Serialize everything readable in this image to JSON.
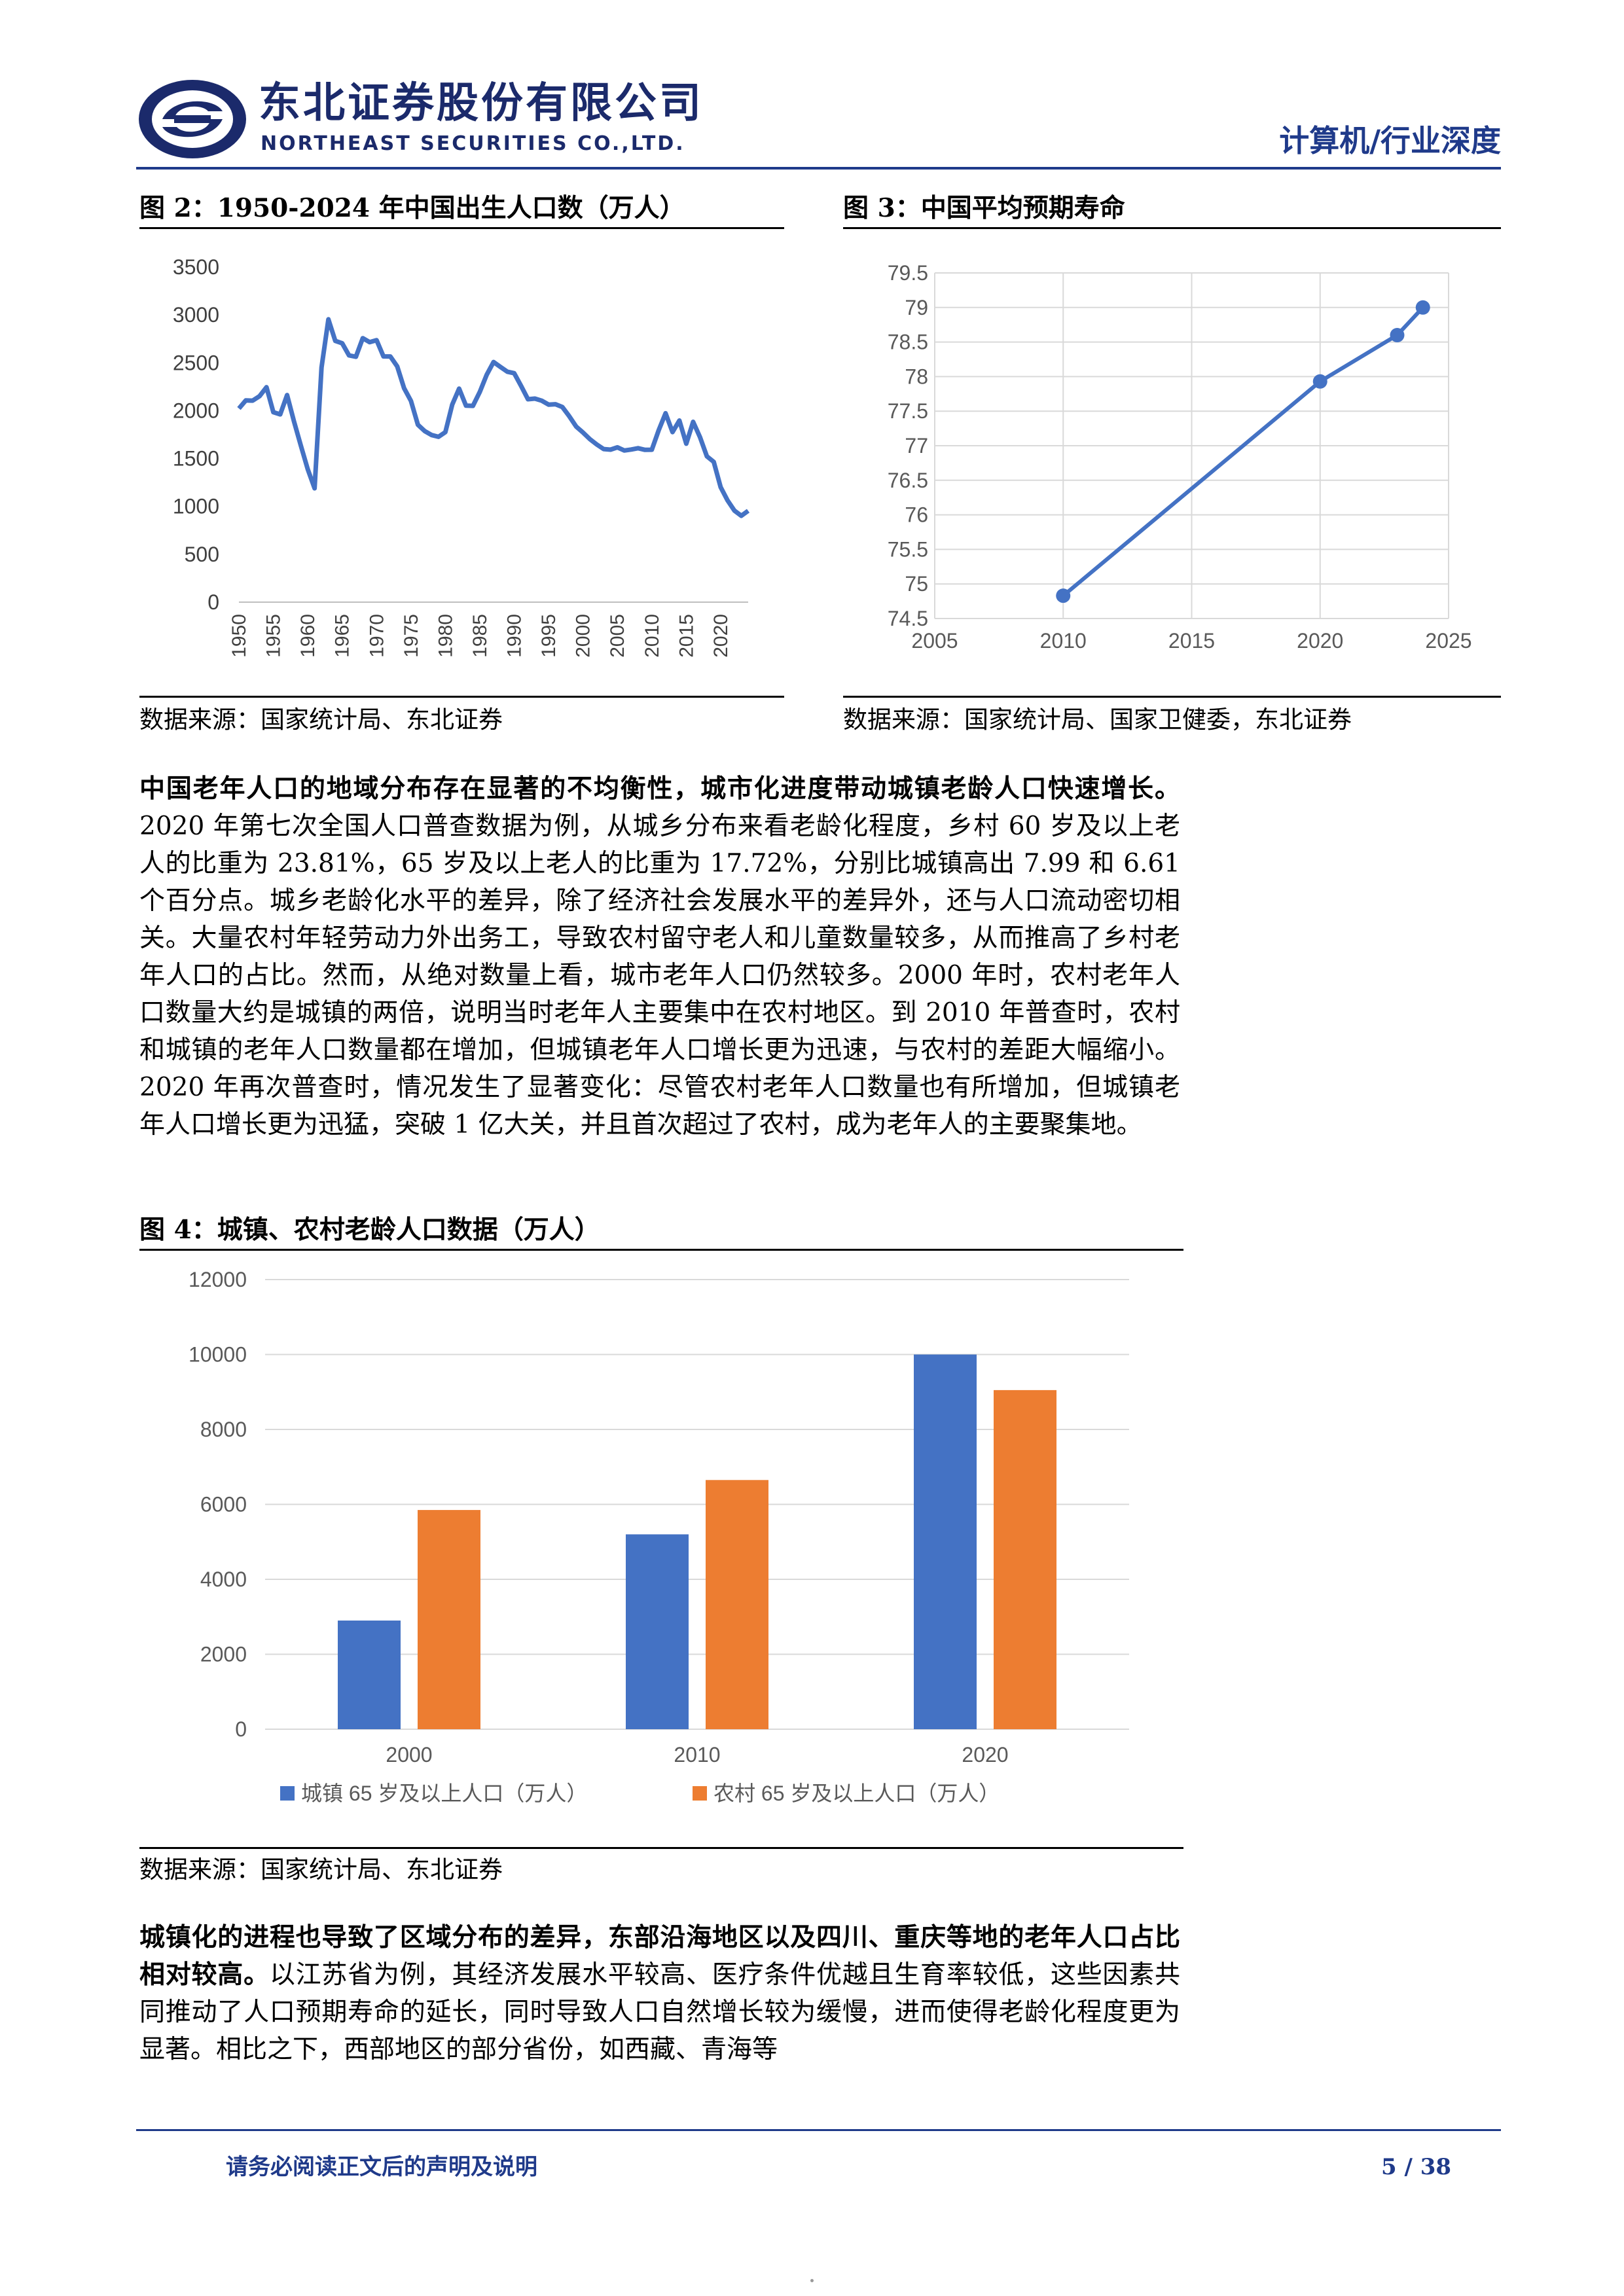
{
  "header": {
    "brand_cn": "东北证券股份有限公司",
    "brand_en": "NORTHEAST SECURITIES CO.,LTD.",
    "tag": "计算机/行业深度"
  },
  "figures": {
    "fig2": {
      "title": "图 2：1950-2024 年中国出生人口数（万人）",
      "source": "数据来源：国家统计局、东北证券"
    },
    "fig3": {
      "title": "图 3：中国平均预期寿命",
      "source": "数据来源：国家统计局、国家卫健委，东北证券"
    },
    "fig4": {
      "title": "图 4：城镇、农村老龄人口数据（万人）",
      "source": "数据来源：国家统计局、东北证券"
    }
  },
  "paragraph1": {
    "lead": "中国老年人口的地域分布存在显著的不均衡性，城市化进度带动城镇老龄人口快速增长。",
    "body": "2020 年第七次全国人口普查数据为例，从城乡分布来看老龄化程度，乡村 60 岁及以上老人的比重为 23.81%，65 岁及以上老人的比重为 17.72%，分别比城镇高出 7.99 和 6.61 个百分点。城乡老龄化水平的差异，除了经济社会发展水平的差异外，还与人口流动密切相关。大量农村年轻劳动力外出务工，导致农村留守老人和儿童数量较多，从而推高了乡村老年人口的占比。然而，从绝对数量上看，城市老年人口仍然较多。2000 年时，农村老年人口数量大约是城镇的两倍，说明当时老年人主要集中在农村地区。到 2010 年普查时，农村和城镇的老年人口数量都在增加，但城镇老年人口增长更为迅速，与农村的差距大幅缩小。2020 年再次普查时，情况发生了显著变化：尽管农村老年人口数量也有所增加，但城镇老年人口增长更为迅猛，突破 1 亿大关，并且首次超过了农村，成为老年人的主要聚集地。"
  },
  "paragraph2": {
    "lead": "城镇化的进程也导致了区域分布的差异，东部沿海地区以及四川、重庆等地的老年人口占比相对较高。",
    "body": "以江苏省为例，其经济发展水平较高、医疗条件优越且生育率较低，这些因素共同推动了人口预期寿命的延长，同时导致人口自然增长较为缓慢，进而使得老龄化程度更为显著。相比之下，西部地区的部分省份，如西藏、青海等"
  },
  "footer": {
    "note": "请务必阅读正文后的声明及说明",
    "page": "5 / 38"
  },
  "colors": {
    "brand": "#1f3a8a",
    "line": "#4472c4",
    "urban": "#4472c4",
    "rural": "#ed7d31"
  },
  "chart_data": [
    {
      "id": "fig2",
      "type": "line",
      "title": "",
      "ylim": [
        0,
        3500
      ],
      "xlim": [
        1950,
        2024
      ],
      "yticks": [
        0,
        500,
        1000,
        1500,
        2000,
        2500,
        3000,
        3500
      ],
      "xticks": [
        1950,
        1955,
        1960,
        1965,
        1970,
        1975,
        1980,
        1985,
        1990,
        1995,
        2000,
        2005,
        2010,
        2015,
        2020
      ],
      "grid": false,
      "x": [
        1950,
        1951,
        1952,
        1953,
        1954,
        1955,
        1956,
        1957,
        1958,
        1959,
        1960,
        1961,
        1962,
        1963,
        1964,
        1965,
        1966,
        1967,
        1968,
        1969,
        1970,
        1971,
        1972,
        1973,
        1974,
        1975,
        1976,
        1977,
        1978,
        1979,
        1980,
        1981,
        1982,
        1983,
        1984,
        1985,
        1986,
        1987,
        1988,
        1989,
        1990,
        1991,
        1992,
        1993,
        1994,
        1995,
        1996,
        1997,
        1998,
        1999,
        2000,
        2001,
        2002,
        2003,
        2004,
        2005,
        2006,
        2007,
        2008,
        2009,
        2010,
        2011,
        2012,
        2013,
        2014,
        2015,
        2016,
        2017,
        2018,
        2019,
        2020,
        2021,
        2022,
        2023,
        2024
      ],
      "values": [
        2023,
        2107,
        2105,
        2151,
        2245,
        1984,
        1961,
        2163,
        1889,
        1635,
        1389,
        1189,
        2451,
        2954,
        2729,
        2704,
        2577,
        2563,
        2757,
        2715,
        2736,
        2567,
        2566,
        2463,
        2235,
        2102,
        1853,
        1786,
        1745,
        1727,
        1776,
        2064,
        2230,
        2052,
        2050,
        2196,
        2374,
        2508,
        2457,
        2407,
        2391,
        2258,
        2119,
        2126,
        2104,
        2063,
        2067,
        2038,
        1942,
        1834,
        1771,
        1702,
        1647,
        1599,
        1593,
        1617,
        1584,
        1594,
        1608,
        1591,
        1592,
        1796,
        1973,
        1776,
        1897,
        1655,
        1883,
        1723,
        1523,
        1465,
        1202,
        1062,
        956,
        902,
        954
      ]
    },
    {
      "id": "fig3",
      "type": "scatter",
      "title": "",
      "xlim": [
        2005,
        2025
      ],
      "ylim": [
        74.5,
        79.5
      ],
      "xticks": [
        2005,
        2010,
        2015,
        2020,
        2025
      ],
      "yticks": [
        74.5,
        75,
        75.5,
        76,
        76.5,
        77,
        77.5,
        78,
        78.5,
        79,
        79.5
      ],
      "grid": true,
      "x": [
        2010,
        2020,
        2023,
        2024
      ],
      "values": [
        74.83,
        77.93,
        78.6,
        79.0
      ]
    },
    {
      "id": "fig4",
      "type": "bar",
      "title": "",
      "categories": [
        "2000",
        "2010",
        "2020"
      ],
      "ylim": [
        0,
        12000
      ],
      "yticks": [
        0,
        2000,
        4000,
        6000,
        8000,
        10000,
        12000
      ],
      "grid": true,
      "legend": "bottom",
      "series": [
        {
          "name": "城镇 65 岁及以上人口（万人）",
          "values": [
            2900,
            5200,
            10000
          ]
        },
        {
          "name": "农村 65 岁及以上人口（万人）",
          "values": [
            5850,
            6650,
            9050
          ]
        }
      ]
    }
  ]
}
